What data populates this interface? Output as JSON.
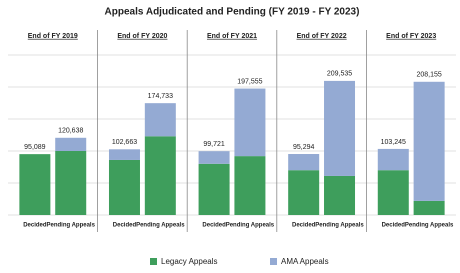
{
  "chart_data": {
    "type": "stacked_bar",
    "title": "Appeals Adjudicated and Pending (FY 2019 - FY 2023)",
    "groups": [
      "End of FY 2019",
      "End of FY 2020",
      "End of FY 2021",
      "End of FY 2022",
      "End of FY 2023"
    ],
    "categories": [
      "Decided",
      "Pending Appeals",
      "Decided",
      "Pending Appeals",
      "Decided",
      "Pending Appeals",
      "Decided",
      "Pending Appeals",
      "Decided",
      "Pending Appeals"
    ],
    "series": [
      {
        "name": "Legacy Appeals",
        "color": "#3e9e5c",
        "values": [
          95089,
          100000,
          86000,
          123000,
          80000,
          92000,
          70000,
          61000,
          70000,
          22000
        ]
      },
      {
        "name": "AMA Appeals",
        "color": "#94aad3",
        "values": [
          0,
          20638,
          16663,
          51733,
          19721,
          105555,
          25294,
          148535,
          33245,
          186155
        ]
      }
    ],
    "totals": [
      95089,
      120638,
      102663,
      174733,
      99721,
      197555,
      95294,
      209535,
      103245,
      208155
    ],
    "total_labels": [
      "95,089",
      "120,638",
      "102,663",
      "174,733",
      "99,721",
      "197,555",
      "95,294",
      "209,535",
      "103,245",
      "208,155"
    ],
    "ylim": [
      0,
      250000
    ],
    "grid_values": [
      0,
      50000,
      100000,
      150000,
      200000,
      250000
    ],
    "grid": true,
    "legend": "bottom"
  }
}
